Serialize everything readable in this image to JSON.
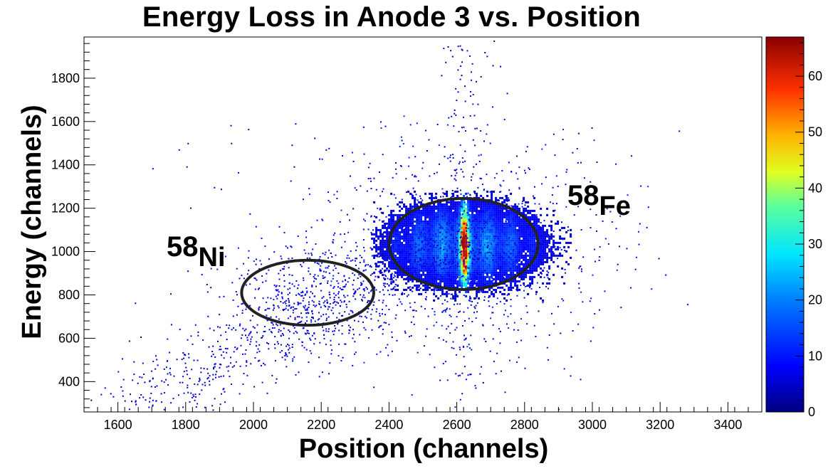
{
  "chart_data": {
    "type": "heatmap",
    "title": "Energy Loss in Anode 3 vs. Position",
    "xlabel": "Position (channels)",
    "ylabel": "Energy (channels)",
    "xlim": [
      1500,
      3500
    ],
    "ylim": [
      260,
      1990
    ],
    "x_ticks": [
      1600,
      1800,
      2000,
      2200,
      2400,
      2600,
      2800,
      3000,
      3200,
      3400
    ],
    "y_ticks": [
      400,
      600,
      800,
      1000,
      1200,
      1400,
      1600,
      1800
    ],
    "colorbar": {
      "min": 0,
      "max": 67,
      "ticks": [
        0,
        10,
        20,
        30,
        40,
        50,
        60
      ]
    },
    "clusters": [
      {
        "label": "Fe",
        "mass": "58",
        "center": [
          2620,
          1035
        ],
        "radius": [
          220,
          210
        ],
        "peak_counts": 67
      },
      {
        "label": "Ni",
        "mass": "58",
        "center": [
          2160,
          810
        ],
        "radius": [
          195,
          150
        ],
        "peak_counts": 5
      }
    ]
  },
  "annotations": {
    "fe": {
      "mass": "58",
      "symbol": "Fe"
    },
    "ni": {
      "mass": "58",
      "symbol": "Ni"
    }
  }
}
